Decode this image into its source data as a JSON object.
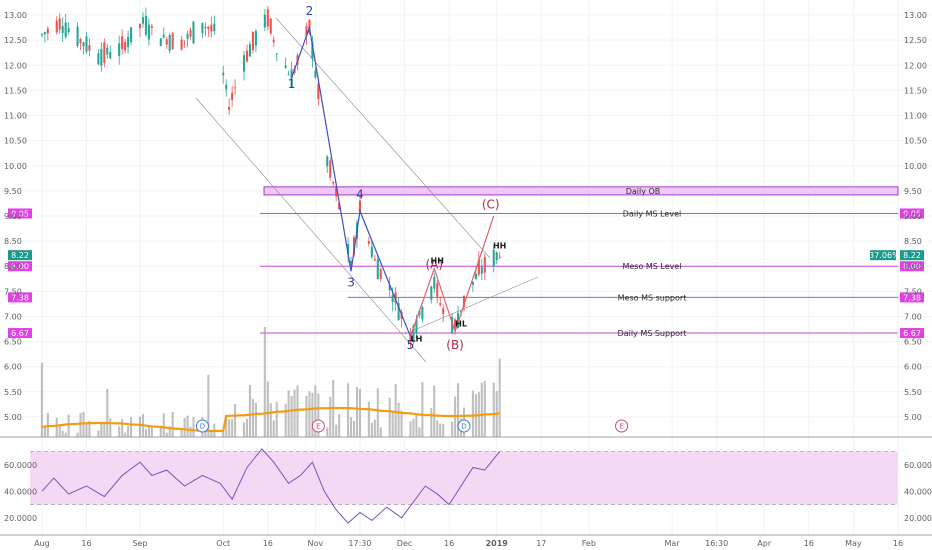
{
  "chart_data": [
    {
      "type": "candlestick",
      "title": "",
      "x_labels": [
        "Aug",
        "16",
        "Sep",
        "Oct",
        "16",
        "Nov",
        "17:30",
        "Dec",
        "16",
        "2019",
        "17",
        "Feb",
        "Mar",
        "16:30",
        "Apr",
        "16",
        "May",
        "16"
      ],
      "y_ticks": [
        "13.00",
        "12.50",
        "12.00",
        "11.50",
        "11.00",
        "10.50",
        "10.00",
        "9.50",
        "9.00",
        "8.50",
        "8.00",
        "7.50",
        "7.00",
        "6.50",
        "6.00",
        "5.50",
        "5.00"
      ],
      "ylim": [
        4.7,
        13.2
      ],
      "price_path": [
        {
          "date": "2018-08-01",
          "price": 12.6
        },
        {
          "date": "2018-08-07",
          "price": 12.85
        },
        {
          "date": "2018-08-14",
          "price": 12.5
        },
        {
          "date": "2018-08-20",
          "price": 12.2
        },
        {
          "date": "2018-08-27",
          "price": 12.3
        },
        {
          "date": "2018-09-04",
          "price": 12.85
        },
        {
          "date": "2018-09-10",
          "price": 12.55
        },
        {
          "date": "2018-09-17",
          "price": 12.45
        },
        {
          "date": "2018-09-24",
          "price": 12.8
        },
        {
          "date": "2018-09-28",
          "price": 12.7
        },
        {
          "date": "2018-10-03",
          "price": 11.2
        },
        {
          "date": "2018-10-08",
          "price": 12.1
        },
        {
          "date": "2018-10-12",
          "price": 12.55
        },
        {
          "date": "2018-10-16",
          "price": 12.95
        },
        {
          "date": "2018-10-19",
          "price": 12.3
        },
        {
          "date": "2018-10-24",
          "price": 11.75
        },
        {
          "date": "2018-10-30",
          "price": 12.75
        },
        {
          "date": "2018-11-05",
          "price": 10.1
        },
        {
          "date": "2018-11-09",
          "price": 9.2
        },
        {
          "date": "2018-11-13",
          "price": 8.0
        },
        {
          "date": "2018-11-16",
          "price": 9.15
        },
        {
          "date": "2018-11-21",
          "price": 8.1
        },
        {
          "date": "2018-11-27",
          "price": 7.45
        },
        {
          "date": "2018-12-03",
          "price": 6.6
        },
        {
          "date": "2018-12-07",
          "price": 7.15
        },
        {
          "date": "2018-12-11",
          "price": 7.65
        },
        {
          "date": "2018-12-14",
          "price": 7.1
        },
        {
          "date": "2018-12-18",
          "price": 6.8
        },
        {
          "date": "2018-12-21",
          "price": 7.3
        },
        {
          "date": "2018-12-26",
          "price": 7.9
        },
        {
          "date": "2019-01-02",
          "price": 8.25
        }
      ],
      "price_levels": [
        {
          "label": "Daily OB",
          "price_top": 9.58,
          "price_bottom": 9.42,
          "kind": "zone"
        },
        {
          "label": "Daily MS Level",
          "price": 9.05,
          "tag": "9.05"
        },
        {
          "label": "Meso MS Level",
          "price": 8.0,
          "tag": "8.00"
        },
        {
          "label": "Meso MS support",
          "price": 7.38,
          "tag": "7.38"
        },
        {
          "label": "Daily MS Support",
          "price": 6.67,
          "tag": "6.67"
        }
      ],
      "last_price_tag": "8.22",
      "change_tag": "-37.06%",
      "wave_labels": [
        {
          "text": "1",
          "date": "2018-10-24",
          "price": 11.55,
          "color": "blue"
        },
        {
          "text": "2",
          "date": "2018-10-30",
          "price": 13.0,
          "color": "blue"
        },
        {
          "text": "3",
          "date": "2018-11-13",
          "price": 7.6,
          "color": "blue"
        },
        {
          "text": "4",
          "date": "2018-11-16",
          "price": 9.35,
          "color": "blue"
        },
        {
          "text": "5",
          "date": "2018-12-03",
          "price": 6.35,
          "color": "blue"
        },
        {
          "text": "(A)",
          "date": "2018-12-11",
          "price": 7.95,
          "color": "red"
        },
        {
          "text": "(B)",
          "date": "2018-12-18",
          "price": 6.35,
          "color": "red"
        },
        {
          "text": "(C)",
          "date": "2018-12-30",
          "price": 9.15,
          "color": "red"
        }
      ],
      "structure_labels": [
        {
          "text": "LH",
          "date": "2018-12-05",
          "price": 6.5
        },
        {
          "text": "HH",
          "date": "2018-12-12",
          "price": 8.05
        },
        {
          "text": "HL",
          "date": "2018-12-20",
          "price": 6.8
        },
        {
          "text": "HH",
          "date": "2019-01-02",
          "price": 8.35
        }
      ],
      "impulse_path": [
        {
          "date": "2018-10-24",
          "price": 11.75
        },
        {
          "date": "2018-10-30",
          "price": 12.75
        },
        {
          "date": "2018-11-13",
          "price": 7.9
        },
        {
          "date": "2018-11-16",
          "price": 9.1
        },
        {
          "date": "2018-12-03",
          "price": 6.6
        }
      ],
      "correction_path": [
        {
          "date": "2018-12-03",
          "price": 6.6
        },
        {
          "date": "2018-12-11",
          "price": 7.95
        },
        {
          "date": "2018-12-18",
          "price": 6.7
        },
        {
          "date": "2018-12-31",
          "price": 9.0
        }
      ],
      "event_markers": [
        {
          "text": "D",
          "date": "2018-09-24"
        },
        {
          "text": "E",
          "date": "2018-11-02"
        },
        {
          "text": "D",
          "date": "2018-12-21"
        },
        {
          "text": "E",
          "date": "2019-02-12"
        }
      ]
    },
    {
      "type": "line",
      "title": "",
      "y_ticks": [
        "60.0000",
        "40.0000",
        "20.0000"
      ],
      "ylim": [
        10,
        78
      ],
      "band": [
        30,
        70
      ],
      "points": [
        {
          "date": "2018-08-01",
          "value": 40
        },
        {
          "date": "2018-08-05",
          "value": 50
        },
        {
          "date": "2018-08-10",
          "value": 38
        },
        {
          "date": "2018-08-16",
          "value": 44
        },
        {
          "date": "2018-08-22",
          "value": 36
        },
        {
          "date": "2018-08-28",
          "value": 52
        },
        {
          "date": "2018-09-03",
          "value": 62
        },
        {
          "date": "2018-09-07",
          "value": 52
        },
        {
          "date": "2018-09-12",
          "value": 56
        },
        {
          "date": "2018-09-18",
          "value": 44
        },
        {
          "date": "2018-09-24",
          "value": 52
        },
        {
          "date": "2018-09-30",
          "value": 46
        },
        {
          "date": "2018-10-04",
          "value": 34
        },
        {
          "date": "2018-10-09",
          "value": 58
        },
        {
          "date": "2018-10-14",
          "value": 72
        },
        {
          "date": "2018-10-18",
          "value": 62
        },
        {
          "date": "2018-10-23",
          "value": 46
        },
        {
          "date": "2018-10-27",
          "value": 52
        },
        {
          "date": "2018-10-31",
          "value": 62
        },
        {
          "date": "2018-11-04",
          "value": 40
        },
        {
          "date": "2018-11-08",
          "value": 26
        },
        {
          "date": "2018-11-12",
          "value": 16
        },
        {
          "date": "2018-11-16",
          "value": 24
        },
        {
          "date": "2018-11-20",
          "value": 18
        },
        {
          "date": "2018-11-25",
          "value": 28
        },
        {
          "date": "2018-11-30",
          "value": 20
        },
        {
          "date": "2018-12-04",
          "value": 32
        },
        {
          "date": "2018-12-08",
          "value": 44
        },
        {
          "date": "2018-12-12",
          "value": 38
        },
        {
          "date": "2018-12-16",
          "value": 30
        },
        {
          "date": "2018-12-20",
          "value": 44
        },
        {
          "date": "2018-12-24",
          "value": 58
        },
        {
          "date": "2018-12-28",
          "value": 56
        },
        {
          "date": "2019-01-02",
          "value": 70
        }
      ]
    }
  ],
  "colors": {
    "bull": "#26a69a",
    "bear": "#ef5350",
    "level_line": "#cc44dd",
    "zone_fill": "#f0c8f5",
    "zone_stroke": "#a23bd0",
    "tag_bg": "#e040e6",
    "last_tag_bg": "#1a9a8a",
    "wave_blue": "#3f4fc8",
    "wave_red": "#e0606f",
    "ma": "#f39c12",
    "volume": "#8a8a8a",
    "rsi_line": "#7b4fc2",
    "rsi_band": "#f3d9f3",
    "event_blue": "#3a7bd5",
    "event_red": "#d04a6a"
  }
}
